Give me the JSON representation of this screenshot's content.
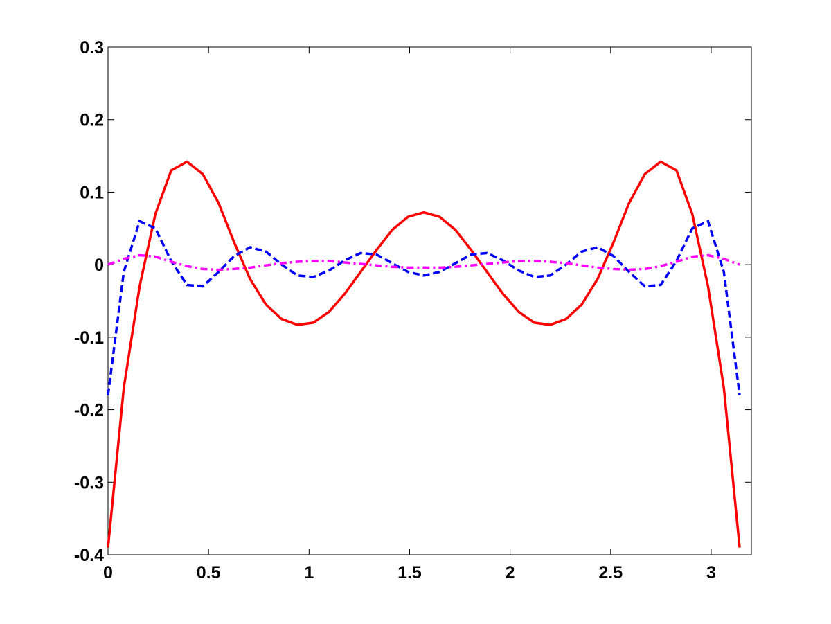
{
  "chart_data": {
    "type": "line",
    "x": [
      0,
      0.0785,
      0.1571,
      0.2356,
      0.3142,
      0.3927,
      0.4712,
      0.5498,
      0.6283,
      0.7069,
      0.7854,
      0.8639,
      0.9425,
      1.021,
      1.0996,
      1.1781,
      1.2566,
      1.3352,
      1.4137,
      1.4923,
      1.5708,
      1.6493,
      1.7279,
      1.8064,
      1.885,
      1.9635,
      2.042,
      2.1206,
      2.1991,
      2.2777,
      2.3562,
      2.4347,
      2.5133,
      2.5918,
      2.6704,
      2.7489,
      2.8274,
      2.906,
      2.9845,
      3.0631,
      3.1416
    ],
    "series": [
      {
        "color": "#ff0000",
        "dash": "solid",
        "values": [
          -0.39,
          -0.17,
          -0.03,
          0.07,
          0.13,
          0.142,
          0.125,
          0.085,
          0.03,
          -0.02,
          -0.055,
          -0.075,
          -0.083,
          -0.08,
          -0.065,
          -0.04,
          -0.01,
          0.02,
          0.048,
          0.066,
          0.072,
          0.066,
          0.048,
          0.02,
          -0.01,
          -0.04,
          -0.065,
          -0.08,
          -0.083,
          -0.075,
          -0.055,
          -0.02,
          0.03,
          0.085,
          0.125,
          0.142,
          0.13,
          0.07,
          -0.03,
          -0.17,
          -0.39
        ]
      },
      {
        "color": "#0000ff",
        "dash": "dashed",
        "values": [
          -0.18,
          -0.01,
          0.06,
          0.05,
          0.005,
          -0.028,
          -0.03,
          -0.01,
          0.012,
          0.024,
          0.018,
          0,
          -0.015,
          -0.017,
          -0.008,
          0.006,
          0.016,
          0.014,
          0.002,
          -0.01,
          -0.015,
          -0.01,
          0.002,
          0.014,
          0.016,
          0.006,
          -0.008,
          -0.017,
          -0.015,
          0,
          0.018,
          0.024,
          0.012,
          -0.01,
          -0.03,
          -0.028,
          0.005,
          0.05,
          0.06,
          -0.01,
          -0.18
        ]
      },
      {
        "color": "#ff00ff",
        "dash": "dashdot",
        "values": [
          0,
          0.008,
          0.013,
          0.011,
          0.004,
          -0.002,
          -0.006,
          -0.007,
          -0.006,
          -0.004,
          -0.001,
          0.002,
          0.004,
          0.005,
          0.005,
          0.003,
          0.001,
          -0.001,
          -0.003,
          -0.004,
          -0.004,
          -0.004,
          -0.003,
          -0.001,
          0.001,
          0.003,
          0.005,
          0.005,
          0.004,
          0.002,
          -0.001,
          -0.004,
          -0.006,
          -0.007,
          -0.006,
          -0.002,
          0.004,
          0.011,
          0.013,
          0.008,
          0
        ]
      }
    ],
    "xlim": [
      0,
      3.2
    ],
    "ylim": [
      -0.4,
      0.3
    ],
    "xticks": [
      0,
      0.5,
      1,
      1.5,
      2,
      2.5,
      3
    ],
    "yticks": [
      -0.4,
      -0.3,
      -0.2,
      -0.1,
      0,
      0.1,
      0.2,
      0.3
    ],
    "grid": false
  }
}
